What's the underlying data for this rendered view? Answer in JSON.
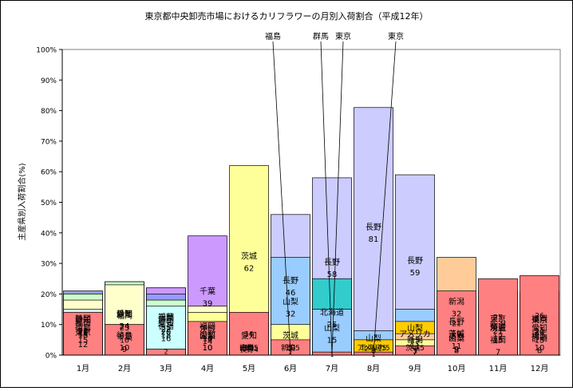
{
  "chart_data": {
    "type": "bar",
    "stacked": true,
    "percent_stacked": true,
    "title": "東京都中央卸売市場におけるカリフラワーの月別入荷割合（平成12年）",
    "ylabel": "主産県別入荷割合(%)",
    "xlabel": "",
    "ylim": [
      0,
      100
    ],
    "yticks": [
      "0%",
      "10%",
      "20%",
      "30%",
      "40%",
      "50%",
      "60%",
      "70%",
      "80%",
      "90%",
      "100%"
    ],
    "grid": false,
    "legend": "none",
    "categories": [
      "1月",
      "2月",
      "3月",
      "4月",
      "5月",
      "6月",
      "7月",
      "8月",
      "9月",
      "10月",
      "11月",
      "12月"
    ],
    "colors": {
      "静岡": "#9999ff",
      "愛知": "#ccffcc",
      "福岡": "#ffffcc",
      "徳島": "#ccffff",
      "東京": "#ff99cc",
      "千葉": "#cc99ff",
      "茨城": "#ffff99",
      "山梨": "#99ccff",
      "長野": "#ccccff",
      "北海道": "#33cccc",
      "新潟": "#ffcc99",
      "群馬": "#99cc00",
      "アメリカ": "#ffcc00",
      "埼玉": "#c0c0c0",
      "その他": "#ff8080"
    },
    "stacks": [
      [
        {
          "name": "静岡",
          "value": 21
        },
        {
          "name": "愛知",
          "value": 20
        },
        {
          "name": "福岡",
          "value": 18
        },
        {
          "name": "徳島",
          "value": 15
        },
        {
          "name": "東京",
          "value": 12
        },
        {
          "name": "その他",
          "value": 14
        }
      ],
      [
        {
          "name": "静岡",
          "value": 24
        },
        {
          "name": "愛知",
          "value": 24
        },
        {
          "name": "福岡",
          "value": 23
        },
        {
          "name": "徳島",
          "value": 10
        },
        {
          "name": "千葉",
          "value": 9
        },
        {
          "name": "その他",
          "value": 10
        }
      ],
      [
        {
          "name": "福岡",
          "value": 22
        },
        {
          "name": "千葉",
          "value": 22
        },
        {
          "name": "静岡",
          "value": 20
        },
        {
          "name": "愛知",
          "value": 18
        },
        {
          "name": "徳島",
          "value": 16
        },
        {
          "name": "その他",
          "value": 2
        }
      ],
      [
        {
          "name": "千葉",
          "value": 39
        },
        {
          "name": "福岡",
          "value": 16
        },
        {
          "name": "茨城",
          "value": 14
        },
        {
          "name": "山梨",
          "value": 10
        },
        {
          "name": "愛知",
          "value": 10
        },
        {
          "name": "その他",
          "value": 11
        }
      ],
      [
        {
          "name": "茨城",
          "value": 62
        },
        {
          "name": "愛知",
          "value": 10
        },
        {
          "name": "山梨",
          "value": 5
        },
        {
          "name": "徳島",
          "value": 5
        },
        {
          "name": "長野",
          "value": 4
        },
        {
          "name": "その他",
          "value": 14
        }
      ],
      [
        {
          "name": "長野",
          "value": 46
        },
        {
          "name": "山梨",
          "value": 32
        },
        {
          "name": "茨城",
          "value": 10
        },
        {
          "name": "新潟",
          "value": 5
        },
        {
          "name": "群馬",
          "value": 2
        },
        {
          "name": "福島",
          "value": 1
        },
        {
          "name": "その他",
          "value": 5
        }
      ],
      [
        {
          "name": "長野",
          "value": 58
        },
        {
          "name": "北海道",
          "value": 25
        },
        {
          "name": "山梨",
          "value": 15
        },
        {
          "name": "群馬",
          "value": 0.5
        },
        {
          "name": "東京",
          "value": 0.5
        },
        {
          "name": "その他",
          "value": 1
        }
      ],
      [
        {
          "name": "長野",
          "value": 81
        },
        {
          "name": "山梨",
          "value": 8
        },
        {
          "name": "北海道",
          "value": 5
        },
        {
          "name": "アメリカ",
          "value": 5
        },
        {
          "name": "東京",
          "value": 0.5
        },
        {
          "name": "その他",
          "value": 1
        }
      ],
      [
        {
          "name": "長野",
          "value": 59
        },
        {
          "name": "山梨",
          "value": 15
        },
        {
          "name": "アメリカ",
          "value": 11
        },
        {
          "name": "新潟",
          "value": 7
        },
        {
          "name": "茨城",
          "value": 5
        },
        {
          "name": "その他",
          "value": 3
        }
      ],
      [
        {
          "name": "新潟",
          "value": 32
        },
        {
          "name": "長野",
          "value": 19
        },
        {
          "name": "茨城",
          "value": 11
        },
        {
          "name": "東京",
          "value": 9
        },
        {
          "name": "山梨",
          "value": 8
        },
        {
          "name": "その他",
          "value": 21
        }
      ],
      [
        {
          "name": "東京",
          "value": 21
        },
        {
          "name": "新潟",
          "value": 17
        },
        {
          "name": "茨城",
          "value": 15
        },
        {
          "name": "埼玉",
          "value": 15
        },
        {
          "name": "福岡",
          "value": 7
        },
        {
          "name": "その他",
          "value": 25
        }
      ],
      [
        {
          "name": "福岡",
          "value": 21
        },
        {
          "name": "東京",
          "value": 20
        },
        {
          "name": "愛知",
          "value": 15
        },
        {
          "name": "埼玉",
          "value": 10
        },
        {
          "name": "静岡",
          "value": 8
        },
        {
          "name": "その他",
          "value": 26
        }
      ]
    ],
    "annotations": [
      {
        "category": "6月",
        "series": "福島",
        "label": "福島"
      },
      {
        "category": "7月",
        "series": "群馬",
        "label": "群馬"
      },
      {
        "category": "7月",
        "series": "東京",
        "label": "東京"
      },
      {
        "category": "8月",
        "series": "東京",
        "label": "東京"
      }
    ]
  }
}
